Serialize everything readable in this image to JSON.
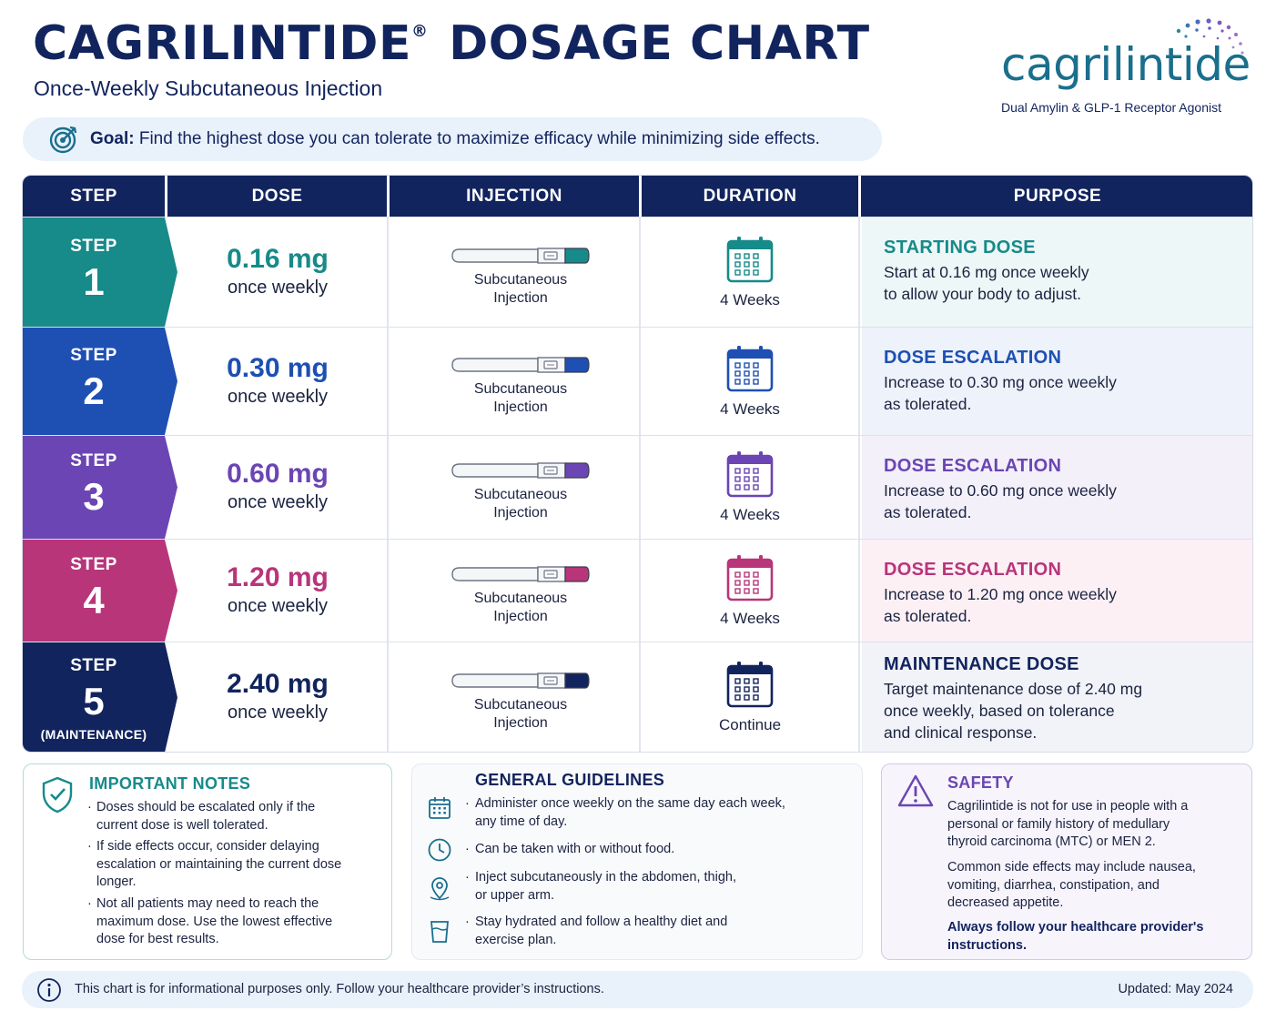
{
  "header": {
    "title_main": "CAGRILINTIDE",
    "title_reg": "®",
    "title_rest": "DOSAGE CHART",
    "subtitle": "Once-Weekly Subcutaneous Injection"
  },
  "logo": {
    "wordmark": "cagrilintide",
    "tagline": "Dual Amylin & GLP-1 Receptor Agonist",
    "color": "#1a6f8c"
  },
  "goal": {
    "label": "Goal:",
    "text": "Find the highest dose you can tolerate to maximize efficacy while minimizing side effects.",
    "icon": "target-icon"
  },
  "table": {
    "headers": [
      "STEP",
      "DOSE",
      "INJECTION",
      "DURATION",
      "PURPOSE"
    ],
    "rows": [
      {
        "step_label": "STEP",
        "step_num": "1",
        "step_sub": "",
        "dose": "0.16 mg",
        "freq": "once weekly",
        "injection": [
          "Subcutaneous",
          "Injection"
        ],
        "duration": "4 Weeks",
        "purpose_title": "STARTING DOSE",
        "purpose_lines": [
          "Start at 0.16 mg once weekly",
          "to allow your body to adjust."
        ],
        "color": "#178a8a",
        "tint": "#eef7f7"
      },
      {
        "step_label": "STEP",
        "step_num": "2",
        "step_sub": "",
        "dose": "0.30 mg",
        "freq": "once weekly",
        "injection": [
          "Subcutaneous",
          "Injection"
        ],
        "duration": "4 Weeks",
        "purpose_title": "DOSE ESCALATION",
        "purpose_lines": [
          "Increase to 0.30 mg once weekly",
          "as tolerated."
        ],
        "color": "#1e4fb3",
        "tint": "#eef2fa"
      },
      {
        "step_label": "STEP",
        "step_num": "3",
        "step_sub": "",
        "dose": "0.60 mg",
        "freq": "once weekly",
        "injection": [
          "Subcutaneous",
          "Injection"
        ],
        "duration": "4 Weeks",
        "purpose_title": "DOSE ESCALATION",
        "purpose_lines": [
          "Increase to 0.60 mg once weekly",
          "as tolerated."
        ],
        "color": "#6b45b3",
        "tint": "#f3f0fa"
      },
      {
        "step_label": "STEP",
        "step_num": "4",
        "step_sub": "",
        "dose": "1.20 mg",
        "freq": "once weekly",
        "injection": [
          "Subcutaneous",
          "Injection"
        ],
        "duration": "4 Weeks",
        "purpose_title": "DOSE ESCALATION",
        "purpose_lines": [
          "Increase to 1.20 mg once weekly",
          "as tolerated."
        ],
        "color": "#b8357a",
        "tint": "#fcf0f5"
      },
      {
        "step_label": "STEP",
        "step_num": "5",
        "step_sub": "(MAINTENANCE)",
        "dose": "2.40 mg",
        "freq": "once weekly",
        "injection": [
          "Subcutaneous",
          "Injection"
        ],
        "duration": "Continue",
        "purpose_title": "MAINTENANCE DOSE",
        "purpose_lines": [
          "Target maintenance dose of 2.40 mg",
          "once weekly, based on tolerance",
          "and clinical response."
        ],
        "color": "#12245e",
        "tint": "#f1f3f8"
      }
    ]
  },
  "notes": {
    "title": "IMPORTANT NOTES",
    "icon": "shield-check-icon",
    "items": [
      [
        "Doses should be escalated only if the",
        "current dose is well tolerated."
      ],
      [
        "If side effects occur, consider delaying",
        "escalation or maintaining the current dose",
        "longer."
      ],
      [
        "Not all patients may need to reach the",
        "maximum dose. Use the lowest effective",
        "dose for best results."
      ]
    ]
  },
  "guidelines": {
    "title": "GENERAL GUIDELINES",
    "items": [
      {
        "icon": "calendar-icon",
        "lines": [
          "Administer once weekly on the same day each week,",
          "any time of day."
        ]
      },
      {
        "icon": "clock-icon",
        "lines": [
          "Can be taken with or without food."
        ]
      },
      {
        "icon": "location-pin-icon",
        "lines": [
          "Inject subcutaneously in the abdomen, thigh,",
          "or upper arm."
        ]
      },
      {
        "icon": "water-glass-icon",
        "lines": [
          "Stay hydrated and follow a healthy diet and",
          "exercise plan."
        ]
      }
    ]
  },
  "safety": {
    "title": "SAFETY",
    "icon": "warning-icon",
    "para1": [
      "Cagrilintide is not for use in people with a",
      "personal or family history of medullary",
      "thyroid carcinoma (MTC) or MEN 2."
    ],
    "para2": [
      "Common side effects may include nausea,",
      "vomiting, diarrhea, constipation, and",
      "decreased appetite."
    ],
    "para3": [
      "Always follow your healthcare provider's",
      "instructions."
    ]
  },
  "footer": {
    "disclaimer": "This chart is for informational purposes only. Follow your healthcare provider’s instructions.",
    "updated": "Updated: May 2024",
    "icon": "info-icon"
  }
}
